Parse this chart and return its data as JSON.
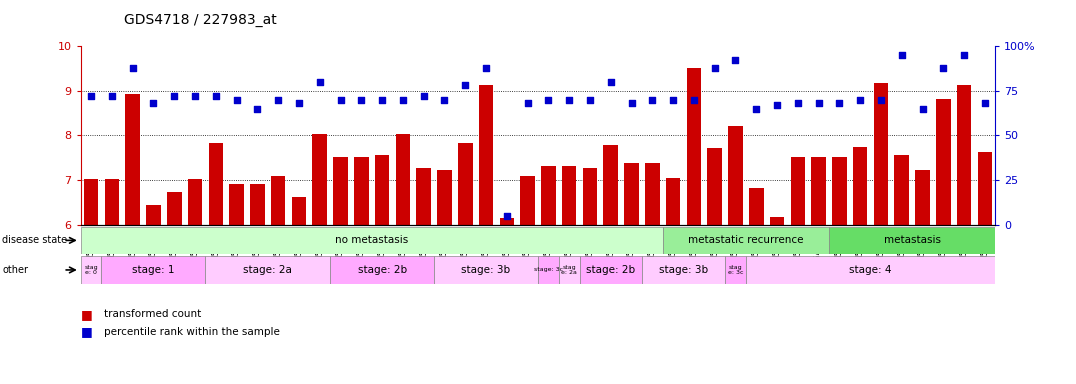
{
  "title": "GDS4718 / 227983_at",
  "samples": [
    "GSM549121",
    "GSM549102",
    "GSM549104",
    "GSM549108",
    "GSM549119",
    "GSM549133",
    "GSM549139",
    "GSM549099",
    "GSM549109",
    "GSM549110",
    "GSM549114",
    "GSM549122",
    "GSM549134",
    "GSM549136",
    "GSM549140",
    "GSM549141",
    "GSM549113",
    "GSM549132",
    "GSM549137",
    "GSM549142",
    "GSM549100",
    "GSM549107",
    "GSM549115",
    "GSM549116",
    "GSM549120",
    "GSM549131",
    "GSM549118",
    "GSM549129",
    "GSM549123",
    "GSM549124",
    "GSM549126",
    "GSM549128",
    "GSM549103",
    "GSM549117",
    "GSM549138",
    "GSM549129b",
    "GSM549130",
    "GSM549101",
    "GSM549105",
    "GSM549106",
    "GSM549112",
    "GSM549125",
    "GSM549127",
    "GSM549135"
  ],
  "bar_values": [
    7.02,
    7.02,
    8.92,
    6.45,
    6.72,
    7.02,
    7.82,
    6.9,
    6.9,
    7.1,
    6.62,
    8.02,
    7.52,
    7.52,
    7.55,
    8.02,
    7.28,
    7.22,
    7.82,
    9.12,
    6.15,
    7.1,
    7.32,
    7.32,
    7.28,
    7.78,
    7.38,
    7.38,
    7.05,
    9.52,
    7.72,
    8.22,
    6.82,
    6.18,
    7.52,
    7.52,
    7.52,
    7.75,
    9.18,
    7.55,
    7.22,
    8.82,
    9.12,
    7.62
  ],
  "scatter_values_pct": [
    72,
    72,
    88,
    68,
    72,
    72,
    72,
    70,
    65,
    70,
    68,
    80,
    70,
    70,
    70,
    70,
    72,
    70,
    78,
    88,
    5,
    68,
    70,
    70,
    70,
    80,
    68,
    70,
    70,
    70,
    88,
    92,
    65,
    67,
    68,
    68,
    68,
    70,
    70,
    95,
    65,
    88,
    95,
    68
  ],
  "ylim_left": [
    6,
    10
  ],
  "ylim_right": [
    0,
    100
  ],
  "yticks_left": [
    6,
    7,
    8,
    9,
    10
  ],
  "yticks_right": [
    0,
    25,
    50,
    75,
    100
  ],
  "bar_color": "#cc0000",
  "scatter_color": "#0000cc",
  "disease_state_bands": [
    {
      "label": "no metastasis",
      "start": 0,
      "end": 28,
      "color": "#ccffcc"
    },
    {
      "label": "metastatic recurrence",
      "start": 28,
      "end": 36,
      "color": "#99ee99"
    },
    {
      "label": "metastasis",
      "start": 36,
      "end": 44,
      "color": "#66dd66"
    }
  ],
  "other_bands": [
    {
      "label": "stag\ne: 0",
      "start": 0,
      "end": 1,
      "color": "#ffccff"
    },
    {
      "label": "stage: 1",
      "start": 1,
      "end": 6,
      "color": "#ffaaff"
    },
    {
      "label": "stage: 2a",
      "start": 6,
      "end": 12,
      "color": "#ffccff"
    },
    {
      "label": "stage: 2b",
      "start": 12,
      "end": 17,
      "color": "#ffaaff"
    },
    {
      "label": "stage: 3b",
      "start": 17,
      "end": 22,
      "color": "#ffccff"
    },
    {
      "label": "stage: 3c",
      "start": 22,
      "end": 23,
      "color": "#ffaaff"
    },
    {
      "label": "stag\ne: 2a",
      "start": 23,
      "end": 24,
      "color": "#ffccff"
    },
    {
      "label": "stage: 2b",
      "start": 24,
      "end": 27,
      "color": "#ffaaff"
    },
    {
      "label": "stage: 3b",
      "start": 27,
      "end": 31,
      "color": "#ffccff"
    },
    {
      "label": "stag\ne: 3c",
      "start": 31,
      "end": 32,
      "color": "#ffaaff"
    },
    {
      "label": "stage: 4",
      "start": 32,
      "end": 44,
      "color": "#ffccff"
    }
  ],
  "legend_items": [
    {
      "label": "transformed count",
      "color": "#cc0000"
    },
    {
      "label": "percentile rank within the sample",
      "color": "#0000cc"
    }
  ],
  "bg_color": "#ffffff",
  "grid_color": "#000000"
}
